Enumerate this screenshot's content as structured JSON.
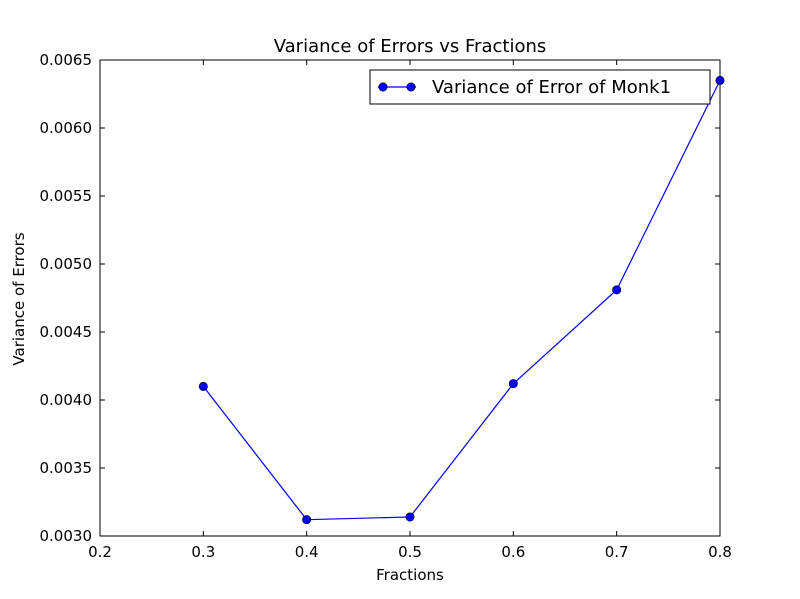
{
  "chart_data": {
    "type": "line",
    "title": "Variance of Errors vs Fractions",
    "xlabel": "Fractions",
    "ylabel": "Variance of Errors",
    "xlim": [
      0.2,
      0.8
    ],
    "ylim": [
      0.003,
      0.0065
    ],
    "xticks": [
      "0.2",
      "0.3",
      "0.4",
      "0.5",
      "0.6",
      "0.7",
      "0.8"
    ],
    "yticks": [
      "0.0030",
      "0.0035",
      "0.0040",
      "0.0045",
      "0.0050",
      "0.0055",
      "0.0060",
      "0.0065"
    ],
    "grid": false,
    "legend_position": "top-right",
    "series": [
      {
        "name": "Variance of Error of Monk1",
        "color": "#0000ff",
        "marker": "circle",
        "x": [
          0.3,
          0.4,
          0.5,
          0.6,
          0.7,
          0.8
        ],
        "y": [
          0.0041,
          0.00312,
          0.00314,
          0.00412,
          0.00481,
          0.00635
        ]
      }
    ]
  }
}
